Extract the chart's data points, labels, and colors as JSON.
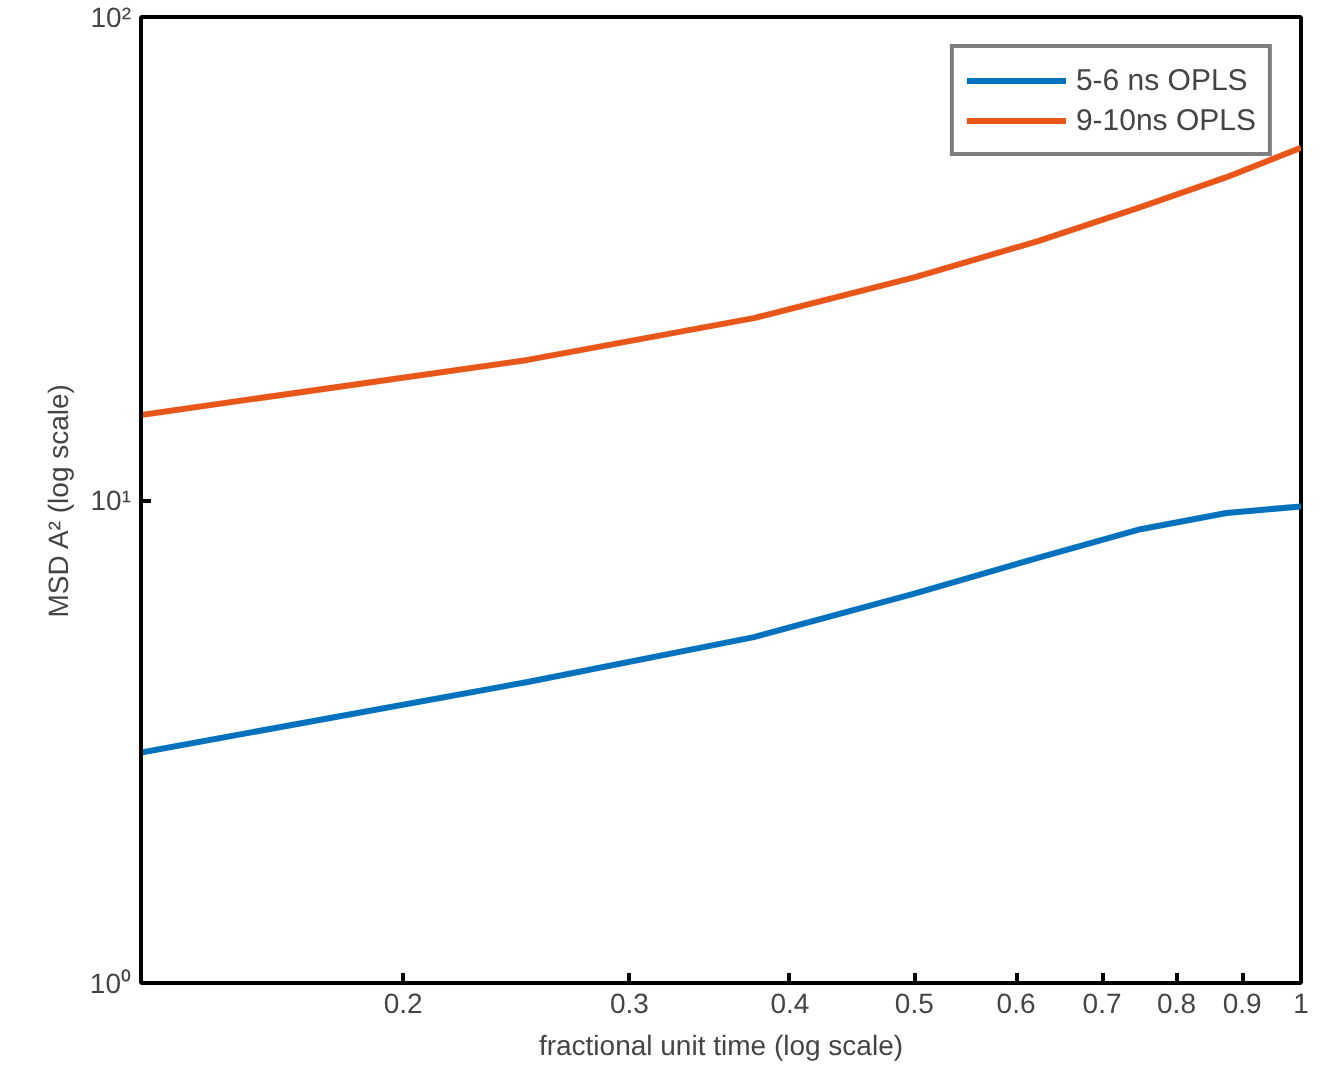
{
  "chart_data": {
    "type": "line",
    "xlabel": "fractional unit time (log scale)",
    "ylabel": "MSD A² (log scale)",
    "x": [
      0.125,
      0.25,
      0.375,
      0.5,
      0.625,
      0.75,
      0.875,
      1
    ],
    "series": [
      {
        "name": "5-6 ns OPLS",
        "color": "#0072bd",
        "values": [
          3.0,
          4.2,
          5.2,
          6.4,
          7.6,
          8.7,
          9.4,
          9.7
        ]
      },
      {
        "name": "9-10ns OPLS",
        "color": "#e8561a",
        "values": [
          15.0,
          19.5,
          23.8,
          28.9,
          34.4,
          40.4,
          46.6,
          53.6
        ]
      }
    ],
    "log": "xy",
    "xlim": [
      0.125,
      1
    ],
    "ylim": [
      1,
      100
    ],
    "xticks": [
      0.2,
      0.3,
      0.4,
      0.5,
      0.6,
      0.7,
      0.8,
      0.9,
      1
    ],
    "yticks": [
      {
        "value": 1,
        "label": "10⁰"
      },
      {
        "value": 10,
        "label": "10¹"
      },
      {
        "value": 100,
        "label": "10²"
      }
    ],
    "grid": false,
    "legend": "top right",
    "line_style": "solid",
    "marker": "none"
  }
}
